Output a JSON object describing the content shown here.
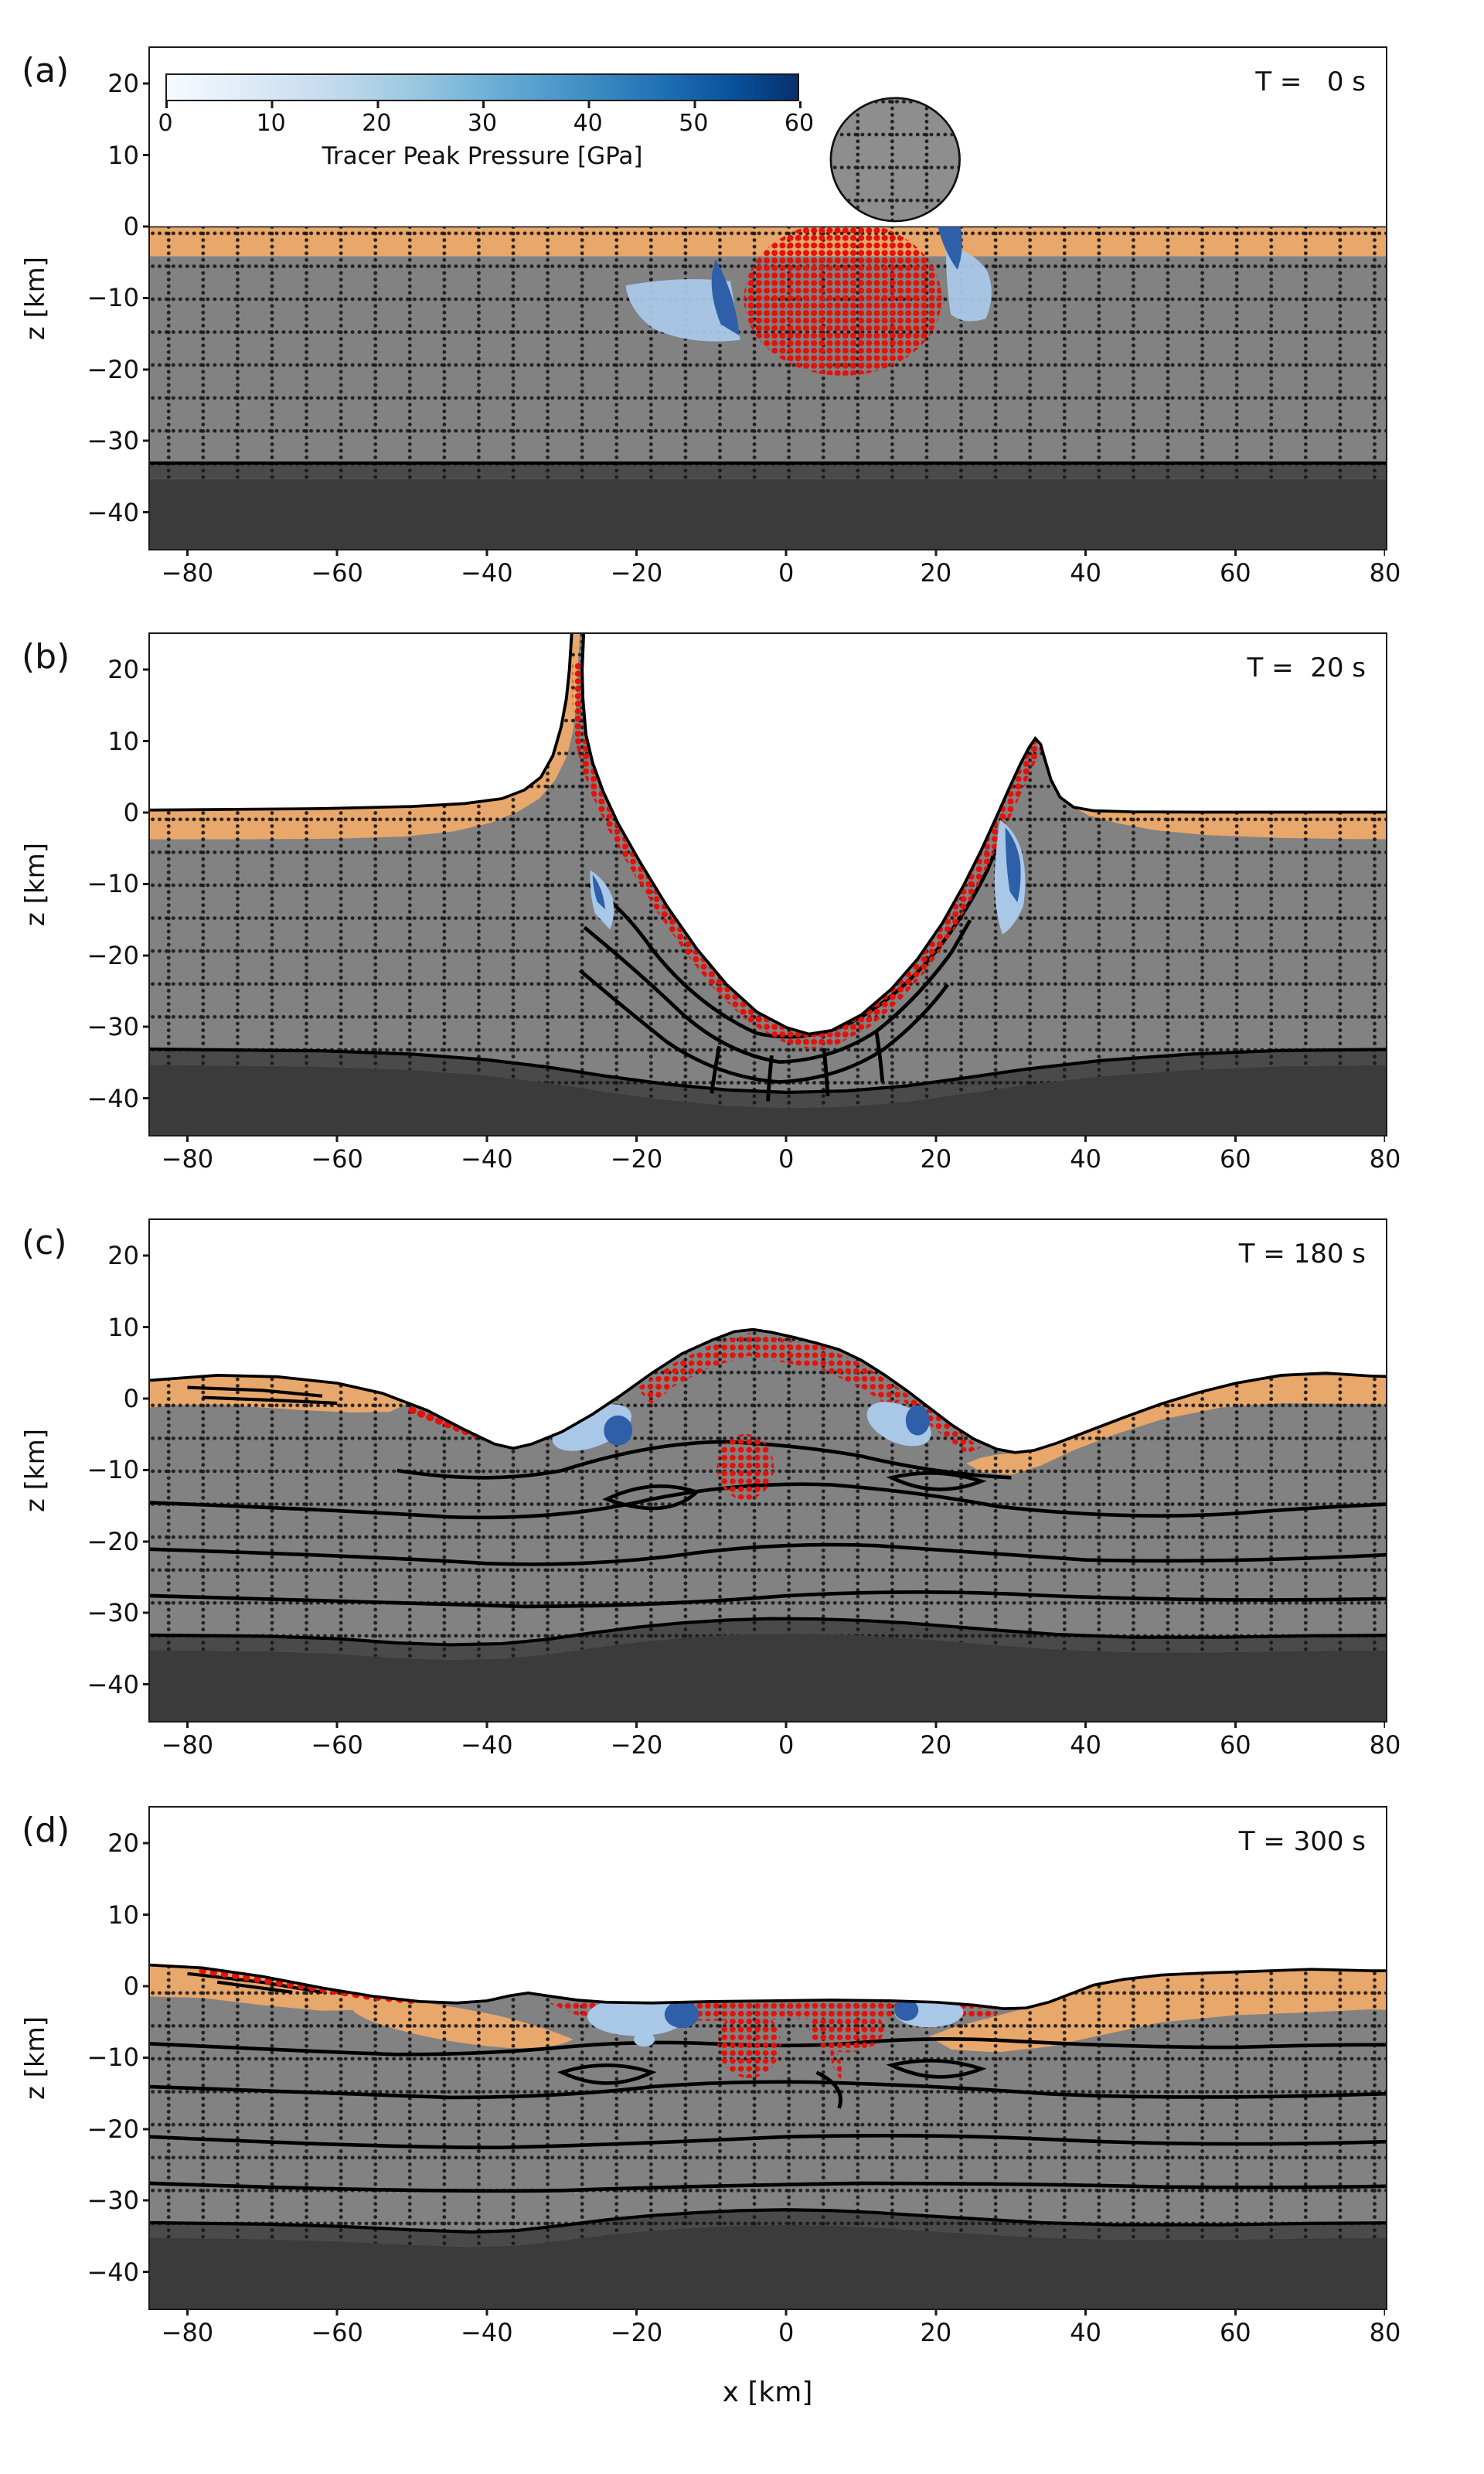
{
  "panels": [
    {
      "letter": "(a)",
      "time_label": "T =   0 s",
      "time_s": 0
    },
    {
      "letter": "(b)",
      "time_label": "T =  20 s",
      "time_s": 20
    },
    {
      "letter": "(c)",
      "time_label": "T = 180 s",
      "time_s": 180
    },
    {
      "letter": "(d)",
      "time_label": "T = 300 s",
      "time_s": 300
    }
  ],
  "axes": {
    "x_label": "x [km]",
    "y_label": "z [km]",
    "x_ticks": [
      "−80",
      "−60",
      "−40",
      "−20",
      "0",
      "20",
      "40",
      "60",
      "80"
    ],
    "y_ticks": [
      "20",
      "10",
      "0",
      "−10",
      "−20",
      "−30",
      "−40"
    ]
  },
  "colorbar": {
    "label": "Tracer Peak Pressure [GPa]",
    "ticks": [
      "0",
      "10",
      "20",
      "30",
      "40",
      "50",
      "60"
    ],
    "min": 0,
    "max": 60,
    "colormap": "Blues"
  },
  "colors": {
    "sediment_orange": "#E8A76B",
    "crust_gray": "#828282",
    "lower_crust_gray": "#4A4A4A",
    "mantle_dark": "#3B3B3B",
    "impactor_gray": "#8E8E8E",
    "tracer_red": "#E3120B",
    "tracer_blue_light": "#A9C8E8",
    "tracer_blue_dark": "#2F5FA8",
    "line_black": "#111111"
  },
  "chart_data": {
    "type": "heatmap",
    "title": "Impact crater hydrocode simulation time series (tracer peak pressure)",
    "xlabel": "x [km]",
    "ylabel": "z [km]",
    "xlim": [
      -85,
      80
    ],
    "ylim": [
      -45,
      25
    ],
    "x_tick_values": [
      -80,
      -60,
      -40,
      -20,
      0,
      20,
      40,
      60,
      80
    ],
    "y_tick_values": [
      20,
      10,
      0,
      -10,
      -20,
      -30,
      -40
    ],
    "colorbar": {
      "label": "Tracer Peak Pressure [GPa]",
      "range_gpa": [
        0,
        60
      ],
      "tick_values": [
        0,
        10,
        20,
        30,
        40,
        50,
        60
      ],
      "colormap": "Blues",
      "position": "inset top-left of panel (a)"
    },
    "grid": "Lagrangian tracer mesh shown as dotted black lines, cell spacing ~4.6 km; solid black lines are deformed marker horizons",
    "target_layers_initial_km": {
      "sediment": [
        0,
        -4
      ],
      "crust": [
        -4,
        -33
      ],
      "lower_crust_band": [
        -33,
        -35
      ],
      "mantle": [
        -35,
        -45
      ]
    },
    "impactor": {
      "shape": "circle",
      "center_km": [
        14.5,
        9.4
      ],
      "radius_km": 8.6,
      "visible_in": "panel (a) only, resting tangent above surface"
    },
    "series": [
      {
        "name": "T = 0 s",
        "features": "Pre/at-contact: flat layered target; impactor above surface at x≈15 km; shock region already recorded: dense red tracer blob (peak P > 60 GPa zone) x≈-6..21 km, z≈0..-20 km; dark-blue fringe on blob edges; light-blue lobes x≈-21..-7 km and x≈21..27 km at z≈-3..-16 km"
      },
      {
        "name": "T = 20 s",
        "features": "Transient cavity ~56 km wide, floor at z≈-31 km near x≈3 km; ejecta curtain on left rim at x≈-28 km extends above z=25 km (clipped), right curtain tip at (33,10) km; red shocked-tracer lining ~2.5 km thick along cavity wall; light/dark blue tracer lenses on both walls; crust grid strongly deformed; lower-crust band depressed to z≈-39 km beneath floor"
      },
      {
        "name": "T = 180 s",
        "features": "Central uplift dome apex z≈+10 km at x≈-5 km draped with red tracers and deep red pocket at (-5,-9) km; inner troughs at x≈-38 and +30 km (z≈-7 km); rim highs z≈+3 km near x≈±65 km with orange sediment caps; orange ejecta/sediment flap folded under right trough; blue tracer lenses at (-26,-4) and (15,-3.5) km; lower-crust band arched up to z≈-31 km under center"
      },
      {
        "name": "T = 300 s",
        "features": "Collapsed flat crater: floor z≈-2 km from x≈-45..30 km; red melt sheet along floor x≈-32..28 km with dense red pockets at (-5,-8) and (8,-6) km; blue lenses at (-20,-4) and (19,-3.5) km; orange sediment caps on outer rims with buried overturned lobes at x≈-55..-28 and 20..50 km; lower-crust band relaxed to z≈-31..-33 km"
      }
    ]
  }
}
